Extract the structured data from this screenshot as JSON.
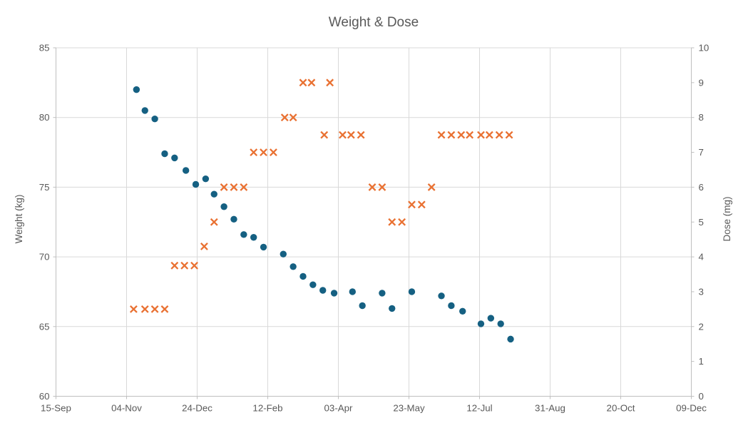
{
  "colors": {
    "weight_series": "#156082",
    "dose_series": "#E97132",
    "gridline": "#D9D9D9",
    "axis_line": "#BFBFBF",
    "text": "#595959"
  },
  "chart_data": {
    "type": "scatter",
    "title": "Weight & Dose",
    "grid": true,
    "legend": "none",
    "x_axis": {
      "unit": "date",
      "x_encoding": "days since 15-Sep",
      "tick_labels": [
        "15-Sep",
        "04-Nov",
        "24-Dec",
        "12-Feb",
        "03-Apr",
        "23-May",
        "12-Jul",
        "31-Aug",
        "20-Oct",
        "09-Dec"
      ],
      "tick_day_offsets": [
        0,
        50,
        100,
        150,
        200,
        250,
        300,
        350,
        400,
        450
      ],
      "range_days": [
        0,
        450
      ]
    },
    "y_left_axis": {
      "label": "Weight (kg)",
      "min": 60,
      "max": 85,
      "tick_step": 5,
      "tick_labels": [
        "60",
        "65",
        "70",
        "75",
        "80",
        "85"
      ],
      "tick_values": [
        60,
        65,
        70,
        75,
        80,
        85
      ]
    },
    "y_right_axis": {
      "label": "Dose (mg)",
      "min": 0,
      "max": 10,
      "tick_step": 1,
      "tick_labels": [
        "0",
        "1",
        "2",
        "3",
        "4",
        "5",
        "6",
        "7",
        "8",
        "9",
        "10"
      ],
      "tick_values": [
        0,
        1,
        2,
        3,
        4,
        5,
        6,
        7,
        8,
        9,
        10
      ]
    },
    "series": [
      {
        "name": "Weight (kg)",
        "axis": "left",
        "marker": "circle",
        "color": "#156082",
        "points": [
          [
            57,
            82.0
          ],
          [
            63,
            80.5
          ],
          [
            70,
            79.9
          ],
          [
            77,
            77.4
          ],
          [
            84,
            77.1
          ],
          [
            92,
            76.2
          ],
          [
            99,
            75.2
          ],
          [
            106,
            75.6
          ],
          [
            112,
            74.5
          ],
          [
            119,
            73.6
          ],
          [
            126,
            72.7
          ],
          [
            133,
            71.6
          ],
          [
            140,
            71.4
          ],
          [
            147,
            70.7
          ],
          [
            161,
            70.2
          ],
          [
            168,
            69.3
          ],
          [
            175,
            68.6
          ],
          [
            182,
            68.0
          ],
          [
            189,
            67.6
          ],
          [
            197,
            67.4
          ],
          [
            210,
            67.5
          ],
          [
            217,
            66.5
          ],
          [
            231,
            67.4
          ],
          [
            238,
            66.3
          ],
          [
            252,
            67.5
          ],
          [
            273,
            67.2
          ],
          [
            280,
            66.5
          ],
          [
            288,
            66.1
          ],
          [
            301,
            65.2
          ],
          [
            308,
            65.6
          ],
          [
            315,
            65.2
          ],
          [
            322,
            64.1
          ]
        ]
      },
      {
        "name": "Dose (mg)",
        "axis": "right",
        "marker": "x",
        "color": "#E97132",
        "points": [
          [
            55,
            2.5
          ],
          [
            63,
            2.5
          ],
          [
            70,
            2.5
          ],
          [
            77,
            2.5
          ],
          [
            84,
            3.75
          ],
          [
            91,
            3.75
          ],
          [
            98,
            3.75
          ],
          [
            105,
            4.3
          ],
          [
            112,
            5.0
          ],
          [
            119,
            6.0
          ],
          [
            126,
            6.0
          ],
          [
            133,
            6.0
          ],
          [
            140,
            7.0
          ],
          [
            147,
            7.0
          ],
          [
            154,
            7.0
          ],
          [
            162,
            8.0
          ],
          [
            168,
            8.0
          ],
          [
            175,
            9.0
          ],
          [
            181,
            9.0
          ],
          [
            190,
            7.5
          ],
          [
            194,
            9.0
          ],
          [
            203,
            7.5
          ],
          [
            209,
            7.5
          ],
          [
            216,
            7.5
          ],
          [
            224,
            6.0
          ],
          [
            231,
            6.0
          ],
          [
            238,
            5.0
          ],
          [
            245,
            5.0
          ],
          [
            252,
            5.5
          ],
          [
            259,
            5.5
          ],
          [
            266,
            6.0
          ],
          [
            273,
            7.5
          ],
          [
            280,
            7.5
          ],
          [
            287,
            7.5
          ],
          [
            293,
            7.5
          ],
          [
            301,
            7.5
          ],
          [
            307,
            7.5
          ],
          [
            314,
            7.5
          ],
          [
            321,
            7.5
          ]
        ]
      }
    ]
  }
}
